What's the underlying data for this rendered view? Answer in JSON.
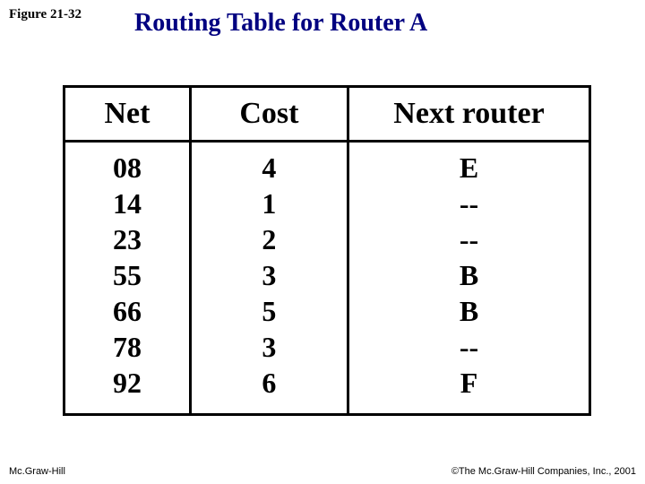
{
  "figure_label": "Figure 21-32",
  "title": "Routing Table for Router A",
  "table": {
    "headers": {
      "net": "Net",
      "cost": "Cost",
      "next": "Next router"
    },
    "rows": [
      {
        "net": "08",
        "cost": "4",
        "next": "E"
      },
      {
        "net": "14",
        "cost": "1",
        "next": "--"
      },
      {
        "net": "23",
        "cost": "2",
        "next": "--"
      },
      {
        "net": "55",
        "cost": "3",
        "next": "B"
      },
      {
        "net": "66",
        "cost": "5",
        "next": "B"
      },
      {
        "net": "78",
        "cost": "3",
        "next": "--"
      },
      {
        "net": "92",
        "cost": "6",
        "next": "F"
      }
    ]
  },
  "footer": {
    "left": "Mc.Graw-Hill",
    "right": "©The Mc.Graw-Hill Companies, Inc., 2001"
  },
  "colors": {
    "title_color": "#000080",
    "text_color": "#000000",
    "border_color": "#000000",
    "background": "#ffffff"
  }
}
